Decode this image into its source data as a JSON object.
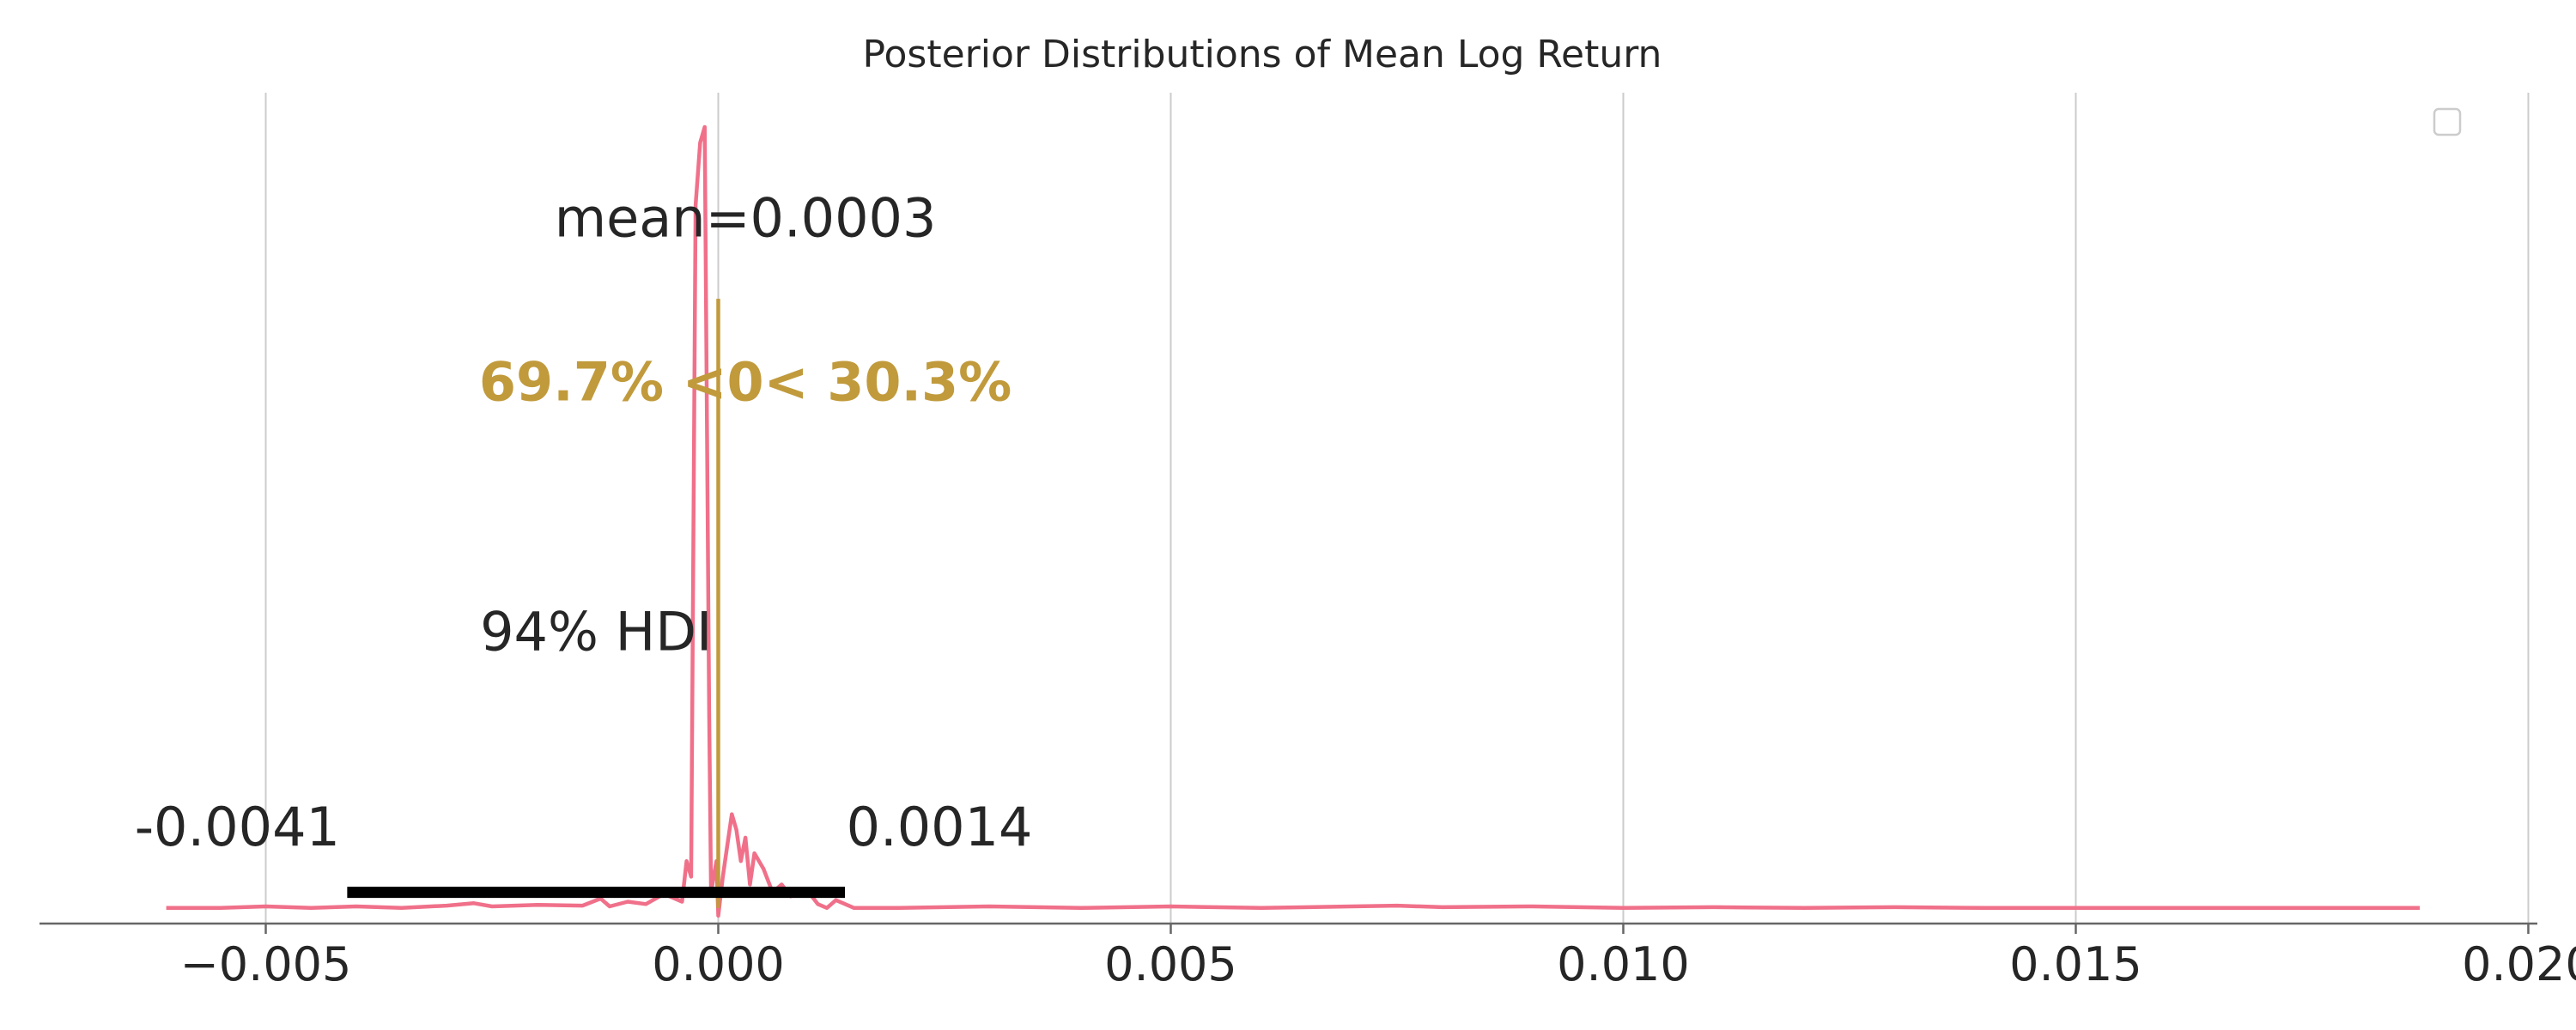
{
  "chart_data": {
    "type": "line",
    "title": "Posterior Distributions of Mean Log Return",
    "xlabel": "",
    "ylabel": "",
    "xlim": [
      -0.0075,
      0.0201
    ],
    "ylim": [
      -0.02,
      1.0
    ],
    "grid": "x-only",
    "legend": "top-right (empty)",
    "x_ticks": [
      -0.005,
      0.0,
      0.005,
      0.01,
      0.015,
      0.02
    ],
    "x_tick_labels": [
      "−0.005",
      "0.000",
      "0.005",
      "0.010",
      "0.015",
      "0.020"
    ],
    "series": [
      {
        "color": "#f0708a",
        "x": [
          -0.0061,
          -0.0055,
          -0.005,
          -0.0045,
          -0.004,
          -0.0035,
          -0.003,
          -0.0027,
          -0.0025,
          -0.002,
          -0.0015,
          -0.0013,
          -0.0012,
          -0.001,
          -0.0008,
          -0.0006,
          -0.0004,
          -0.00035,
          -0.0003,
          -0.00025,
          -0.0002,
          -0.00015,
          -0.0001,
          -8e-05,
          -5e-05,
          -2e-05,
          0.0,
          5e-05,
          0.0001,
          0.00015,
          0.0002,
          0.00025,
          0.0003,
          0.00035,
          0.0004,
          0.0005,
          0.0006,
          0.0007,
          0.0008,
          0.001,
          0.0011,
          0.0012,
          0.0013,
          0.0015,
          0.002,
          0.003,
          0.004,
          0.005,
          0.006,
          0.007,
          0.0075,
          0.008,
          0.009,
          0.01,
          0.011,
          0.012,
          0.013,
          0.014,
          0.015,
          0.016,
          0.017,
          0.018,
          0.0188
        ],
        "y": [
          0.0,
          0.0,
          0.002,
          0.0,
          0.002,
          0.0,
          0.003,
          0.006,
          0.002,
          0.004,
          0.003,
          0.012,
          0.002,
          0.008,
          0.005,
          0.018,
          0.008,
          0.06,
          0.04,
          0.9,
          0.98,
          1.0,
          0.25,
          0.02,
          0.04,
          0.06,
          -0.01,
          0.04,
          0.08,
          0.12,
          0.1,
          0.06,
          0.09,
          0.03,
          0.07,
          0.05,
          0.02,
          0.03,
          0.015,
          0.02,
          0.005,
          0.0,
          0.01,
          0.0,
          0.0,
          0.002,
          0.0,
          0.002,
          0.0,
          0.002,
          0.003,
          0.001,
          0.002,
          0.0,
          0.001,
          0.0,
          0.001,
          0.0,
          0.0,
          0.0,
          0.0,
          0.0,
          0.0
        ]
      }
    ],
    "hdi": {
      "label": "94% HDI",
      "low": -0.0041,
      "high": 0.0014,
      "low_label": "-0.0041",
      "high_label": "0.0014",
      "color": "#000000"
    },
    "point_estimate": {
      "label": "mean=0.0003"
    },
    "reference": {
      "value": 0.0,
      "label": "69.7% <0< 30.3%",
      "color": "#c19a3c",
      "line_top": 0.78
    }
  }
}
